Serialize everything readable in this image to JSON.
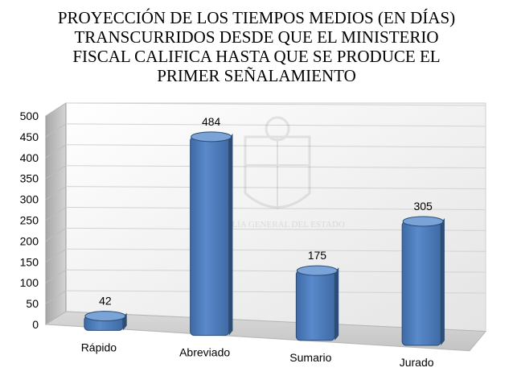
{
  "title": "PROYECCIÓN DE LOS TIEMPOS MEDIOS (EN DÍAS)\nTRANSCURRIDOS DESDE QUE EL MINISTERIO\nFISCAL CALIFICA HASTA QUE SE PRODUCE EL\nPRIMER SEÑALAMIENTO",
  "watermark": "FISCALÍA GENERAL DEL ESTADO",
  "colors": {
    "bar": "#4f81bd",
    "bar_top": "#7aa3d8",
    "bar_edge": "#2c4d75"
  },
  "chart_data": {
    "type": "bar",
    "style": "3d-column",
    "categories": [
      "Rápido",
      "Abreviado",
      "Sumario",
      "Jurado"
    ],
    "values": [
      42,
      484,
      175,
      305
    ],
    "data_labels": [
      "42",
      "484",
      "175",
      "305"
    ],
    "ylim": [
      0,
      500
    ],
    "yticks": [
      "0",
      "50",
      "100",
      "150",
      "200",
      "250",
      "300",
      "350",
      "400",
      "450",
      "500"
    ],
    "grid": true,
    "legend": "none"
  }
}
